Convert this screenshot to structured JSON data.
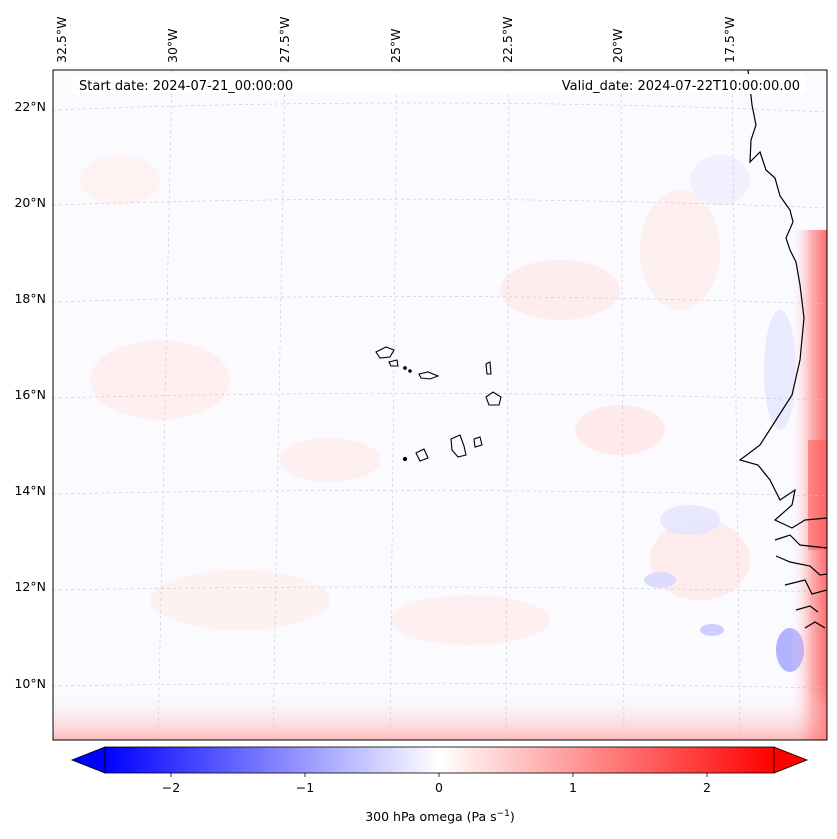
{
  "map": {
    "start_date_label": "Start date: 2024-07-21_00:00:00",
    "valid_date_label": "Valid_date: 2024-07-22T10:00:00.00",
    "longitude_labels": [
      "32.5°W",
      "30°W",
      "27.5°W",
      "25°W",
      "22.5°W",
      "20°W",
      "17.5°W"
    ],
    "latitude_labels": [
      "22°N",
      "20°N",
      "18°N",
      "16°N",
      "14°N",
      "12°N",
      "10°N"
    ],
    "field": "300 hPa omega",
    "features": [
      "Cape Verde islands",
      "West African coastline"
    ]
  },
  "colorbar": {
    "label_main": "300 hPa omega (Pa s",
    "label_exp": "−1",
    "label_close": ")",
    "ticks": [
      "−2",
      "−1",
      "0",
      "1",
      "2"
    ],
    "colormap": "bwr",
    "range": [
      -2.6,
      2.6
    ],
    "extend": "both",
    "colors": {
      "negative": "#0000ff",
      "zero": "#ffffff",
      "positive": "#ff0000"
    }
  }
}
